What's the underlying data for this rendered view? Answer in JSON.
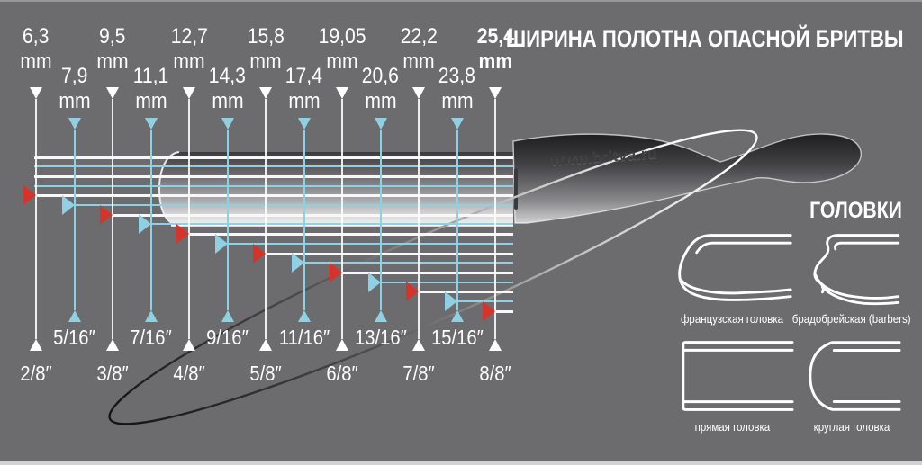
{
  "title": "ШИРИНА ПОЛОТНА ОПАСНОЙ БРИТВЫ",
  "watermark": "www.britva.ru",
  "unit_label": "mm",
  "heads_section": {
    "title": "ГОЛОВКИ",
    "items": [
      {
        "label": "французская головка",
        "icon": "french-head-icon"
      },
      {
        "label": "брадобрейская (barbers)",
        "icon": "barbers-head-icon"
      },
      {
        "label": "прямая головка",
        "icon": "straight-head-icon"
      },
      {
        "label": "круглая головка",
        "icon": "round-head-icon"
      }
    ]
  },
  "chart_data": {
    "type": "scale-diagram",
    "description": "Straight razor blade width scale: each horizontal line marks a blade width measured from the spine reference line; verticals link mm values (top) to inch fractions (bottom).",
    "sizes": [
      {
        "mm": "6,3",
        "inch": "2/8″",
        "kind": "main"
      },
      {
        "mm": "7,9",
        "inch": "5/16″",
        "kind": "half"
      },
      {
        "mm": "9,5",
        "inch": "3/8″",
        "kind": "main"
      },
      {
        "mm": "11,1",
        "inch": "7/16″",
        "kind": "half"
      },
      {
        "mm": "12,7",
        "inch": "4/8″",
        "kind": "main"
      },
      {
        "mm": "14,3",
        "inch": "9/16″",
        "kind": "half"
      },
      {
        "mm": "15,8",
        "inch": "5/8″",
        "kind": "main"
      },
      {
        "mm": "17,4",
        "inch": "11/16″",
        "kind": "half"
      },
      {
        "mm": "19,05",
        "inch": "6/8″",
        "kind": "main"
      },
      {
        "mm": "20,6",
        "inch": "13/16″",
        "kind": "half"
      },
      {
        "mm": "22,2",
        "inch": "7/8″",
        "kind": "main"
      },
      {
        "mm": "23,8",
        "inch": "15/16″",
        "kind": "half"
      },
      {
        "mm": "25,4",
        "inch": "8/8″",
        "kind": "main",
        "bold": true
      }
    ],
    "colors": {
      "background": "#6c6c6f",
      "main_lines": "#ffffff",
      "half_lines": "#8fd0e4",
      "main_marker": "#d5342a",
      "half_marker": "#8fd0e4"
    }
  }
}
